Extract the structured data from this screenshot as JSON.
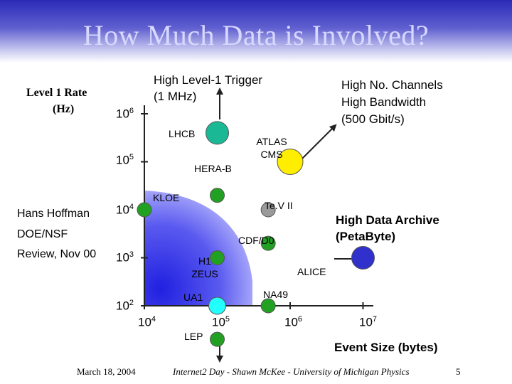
{
  "slide": {
    "title": "How Much Data is Involved?",
    "y_axis_title_line1": "Level 1 Rate",
    "y_axis_title_line2": "(Hz)",
    "x_axis_title": "Event Size (bytes)",
    "author_line1": "Hans Hoffman",
    "author_line2": "DOE/NSF",
    "author_line3": "Review, Nov 00",
    "annotation_trigger_line1": "High Level-1 Trigger",
    "annotation_trigger_line2": "(1 MHz)",
    "annotation_channels_line1": "High No. Channels",
    "annotation_channels_line2": "High Bandwidth",
    "annotation_channels_line3": "(500 Gbit/s)",
    "annotation_archive_line1": "High Data Archive",
    "annotation_archive_line2": "(PetaByte)",
    "footer_date": "March 18, 2004",
    "footer_center": "Internet2 Day - Shawn McKee - University of Michigan Physics",
    "page_number": "5"
  },
  "y_ticks": [
    {
      "base": "10",
      "exp": "6"
    },
    {
      "base": "10",
      "exp": "5"
    },
    {
      "base": "10",
      "exp": "4"
    },
    {
      "base": "10",
      "exp": "3"
    },
    {
      "base": "10",
      "exp": "2"
    }
  ],
  "x_ticks": [
    {
      "base": "10",
      "exp": "4"
    },
    {
      "base": "10",
      "exp": "5"
    },
    {
      "base": "10",
      "exp": "6"
    },
    {
      "base": "10",
      "exp": "7"
    }
  ],
  "chart_data": {
    "type": "scatter",
    "xlabel": "Event Size (bytes)",
    "ylabel": "Level 1 Rate (Hz)",
    "x_scale": "log",
    "y_scale": "log",
    "points": [
      {
        "label": "LHCB",
        "x": 100000,
        "y": 400000,
        "color": "#1ab894"
      },
      {
        "label": "ATLAS CMS",
        "x": 1000000,
        "y": 100000,
        "color": "#ffee00"
      },
      {
        "label": "HERA-B",
        "x": 100000,
        "y": 20000,
        "color": "#22a022"
      },
      {
        "label": "KLOE",
        "x": 10000,
        "y": 10000,
        "color": "#22a022"
      },
      {
        "label": "Te.V II",
        "x": 500000,
        "y": 10000,
        "color": "#9a9a9a"
      },
      {
        "label": "CDF/D0",
        "x": 500000,
        "y": 2000,
        "color": "#22a022"
      },
      {
        "label": "H1 ZEUS",
        "x": 100000,
        "y": 1000,
        "color": "#22a022"
      },
      {
        "label": "ALICE",
        "x": 10000000,
        "y": 1000,
        "color": "#3030cc"
      },
      {
        "label": "NA49",
        "x": 500000,
        "y": 100,
        "color": "#22a022"
      },
      {
        "label": "UA1",
        "x": 100000,
        "y": 100,
        "color": "#22ffff"
      },
      {
        "label": "LEP",
        "x": 100000,
        "y": 20,
        "color": "#22a022"
      }
    ]
  }
}
